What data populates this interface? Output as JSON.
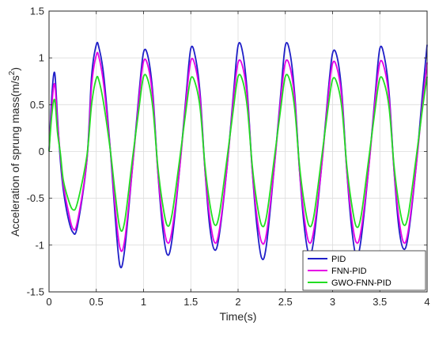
{
  "chart_data": {
    "type": "line",
    "xlabel": "Time(s)",
    "ylabel": "Acceleration of sprung mass(m/s",
    "ylabel_sup": "2",
    "ylabel_end": ")",
    "xlim": [
      0,
      4
    ],
    "ylim": [
      -1.5,
      1.5
    ],
    "xticks": [
      0,
      0.5,
      1,
      1.5,
      2,
      2.5,
      3,
      3.5,
      4
    ],
    "yticks": [
      -1.5,
      -1,
      -0.5,
      0,
      0.5,
      1,
      1.5
    ],
    "xtick_labels": [
      "0",
      "0.5",
      "1",
      "1.5",
      "2",
      "2.5",
      "3",
      "3.5",
      "4"
    ],
    "ytick_labels": [
      "-1.5",
      "-1",
      "-0.5",
      "0",
      "0.5",
      "1",
      "1.5"
    ],
    "grid": true,
    "legend_position": "bottom-right",
    "series": [
      {
        "name": "PID",
        "color": "#1f1fc8",
        "x": [
          0,
          0.03,
          0.06,
          0.09,
          0.12,
          0.15,
          0.2,
          0.25,
          0.3,
          0.4,
          0.45,
          0.5,
          0.53,
          0.58,
          0.65,
          0.7,
          0.75,
          0.8,
          0.88,
          0.95,
          1.0,
          1.05,
          1.1,
          1.15,
          1.2,
          1.25,
          1.3,
          1.38,
          1.45,
          1.5,
          1.55,
          1.6,
          1.65,
          1.7,
          1.75,
          1.8,
          1.88,
          1.95,
          2.0,
          2.05,
          2.1,
          2.15,
          2.2,
          2.25,
          2.3,
          2.38,
          2.45,
          2.5,
          2.55,
          2.6,
          2.65,
          2.7,
          2.75,
          2.8,
          2.88,
          2.95,
          3.0,
          3.05,
          3.1,
          3.15,
          3.2,
          3.25,
          3.3,
          3.38,
          3.45,
          3.5,
          3.55,
          3.6,
          3.65,
          3.7,
          3.75,
          3.8,
          3.88,
          3.95,
          4.0
        ],
        "y": [
          0.0,
          0.6,
          0.84,
          0.35,
          -0.1,
          -0.4,
          -0.7,
          -0.86,
          -0.8,
          -0.1,
          0.8,
          1.14,
          1.1,
          0.8,
          0.0,
          -0.7,
          -1.22,
          -1.05,
          -0.2,
          0.6,
          1.06,
          1.0,
          0.6,
          -0.2,
          -0.8,
          -1.1,
          -0.95,
          -0.2,
          0.6,
          1.1,
          1.0,
          0.6,
          -0.2,
          -0.8,
          -1.05,
          -0.9,
          -0.2,
          0.6,
          1.13,
          1.05,
          0.6,
          -0.2,
          -0.8,
          -1.14,
          -1.0,
          -0.2,
          0.6,
          1.13,
          1.05,
          0.6,
          -0.2,
          -0.8,
          -1.1,
          -0.95,
          -0.2,
          0.6,
          1.05,
          1.0,
          0.6,
          -0.2,
          -0.8,
          -1.12,
          -0.95,
          -0.2,
          0.6,
          1.1,
          1.0,
          0.6,
          -0.2,
          -0.8,
          -1.04,
          -0.9,
          -0.2,
          0.6,
          1.14
        ]
      },
      {
        "name": "FNN-PID",
        "color": "#e600e6",
        "x": [
          0,
          0.03,
          0.06,
          0.09,
          0.12,
          0.15,
          0.2,
          0.25,
          0.3,
          0.4,
          0.45,
          0.5,
          0.53,
          0.58,
          0.65,
          0.7,
          0.75,
          0.8,
          0.88,
          0.95,
          1.0,
          1.05,
          1.1,
          1.15,
          1.2,
          1.25,
          1.3,
          1.38,
          1.45,
          1.5,
          1.55,
          1.6,
          1.65,
          1.7,
          1.75,
          1.8,
          1.88,
          1.95,
          2.0,
          2.05,
          2.1,
          2.15,
          2.2,
          2.25,
          2.3,
          2.38,
          2.45,
          2.5,
          2.55,
          2.6,
          2.65,
          2.7,
          2.75,
          2.8,
          2.88,
          2.95,
          3.0,
          3.05,
          3.1,
          3.15,
          3.2,
          3.25,
          3.3,
          3.38,
          3.45,
          3.5,
          3.55,
          3.6,
          3.65,
          3.7,
          3.75,
          3.8,
          3.88,
          3.95,
          4.0
        ],
        "y": [
          0.0,
          0.5,
          0.72,
          0.3,
          -0.05,
          -0.35,
          -0.62,
          -0.82,
          -0.75,
          -0.1,
          0.7,
          1.03,
          1.0,
          0.7,
          0.0,
          -0.6,
          -1.03,
          -0.95,
          -0.2,
          0.55,
          0.96,
          0.9,
          0.55,
          -0.2,
          -0.7,
          -0.97,
          -0.85,
          -0.2,
          0.55,
          0.97,
          0.9,
          0.55,
          -0.2,
          -0.7,
          -0.97,
          -0.85,
          -0.2,
          0.55,
          0.95,
          0.9,
          0.55,
          -0.2,
          -0.7,
          -0.97,
          -0.88,
          -0.2,
          0.55,
          0.95,
          0.9,
          0.55,
          -0.2,
          -0.7,
          -0.97,
          -0.85,
          -0.2,
          0.55,
          0.94,
          0.88,
          0.55,
          -0.2,
          -0.7,
          -0.97,
          -0.85,
          -0.2,
          0.55,
          0.95,
          0.88,
          0.55,
          -0.2,
          -0.7,
          -0.97,
          -0.85,
          -0.2,
          0.5,
          0.95
        ]
      },
      {
        "name": "GWO-FNN-PID",
        "color": "#22dd22",
        "x": [
          0,
          0.03,
          0.06,
          0.09,
          0.12,
          0.15,
          0.2,
          0.25,
          0.3,
          0.4,
          0.45,
          0.5,
          0.53,
          0.58,
          0.65,
          0.7,
          0.75,
          0.8,
          0.88,
          0.95,
          1.0,
          1.05,
          1.1,
          1.15,
          1.2,
          1.25,
          1.3,
          1.38,
          1.45,
          1.5,
          1.55,
          1.6,
          1.65,
          1.7,
          1.75,
          1.8,
          1.88,
          1.95,
          2.0,
          2.05,
          2.1,
          2.15,
          2.2,
          2.25,
          2.3,
          2.38,
          2.45,
          2.5,
          2.55,
          2.6,
          2.65,
          2.7,
          2.75,
          2.8,
          2.88,
          2.95,
          3.0,
          3.05,
          3.1,
          3.15,
          3.2,
          3.25,
          3.3,
          3.38,
          3.45,
          3.5,
          3.55,
          3.6,
          3.65,
          3.7,
          3.75,
          3.8,
          3.88,
          3.95,
          4.0
        ],
        "y": [
          0.0,
          0.4,
          0.55,
          0.2,
          -0.02,
          -0.3,
          -0.5,
          -0.62,
          -0.55,
          -0.05,
          0.5,
          0.78,
          0.75,
          0.5,
          0.0,
          -0.45,
          -0.82,
          -0.75,
          -0.1,
          0.45,
          0.8,
          0.75,
          0.45,
          -0.15,
          -0.55,
          -0.79,
          -0.68,
          -0.1,
          0.45,
          0.78,
          0.72,
          0.45,
          -0.15,
          -0.55,
          -0.78,
          -0.68,
          -0.1,
          0.45,
          0.8,
          0.75,
          0.45,
          -0.15,
          -0.55,
          -0.79,
          -0.7,
          -0.1,
          0.45,
          0.8,
          0.75,
          0.45,
          -0.15,
          -0.55,
          -0.79,
          -0.7,
          -0.1,
          0.45,
          0.77,
          0.72,
          0.45,
          -0.15,
          -0.55,
          -0.8,
          -0.7,
          -0.1,
          0.45,
          0.78,
          0.72,
          0.45,
          -0.15,
          -0.55,
          -0.78,
          -0.68,
          -0.1,
          0.45,
          0.8
        ]
      }
    ]
  }
}
